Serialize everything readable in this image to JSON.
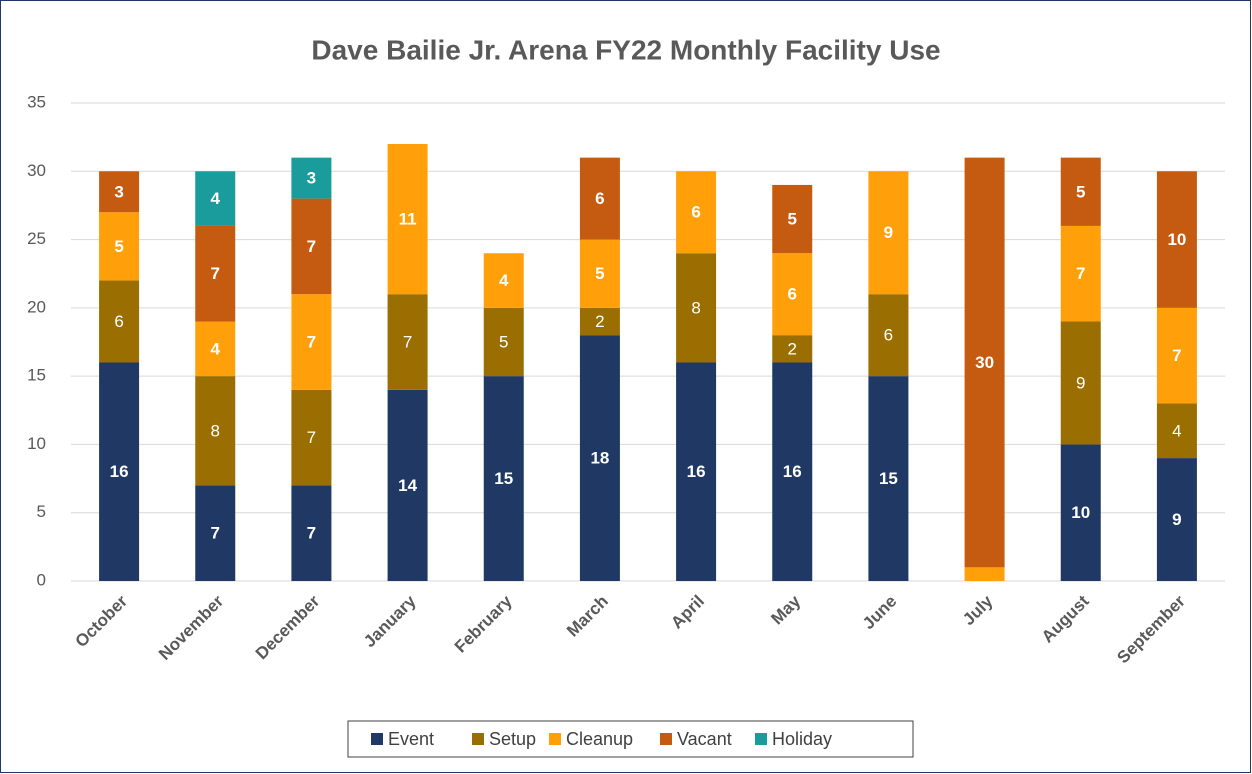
{
  "chart_data": {
    "type": "stacked_bar",
    "title": "Dave Bailie Jr. Arena FY22 Monthly Facility Use",
    "categories": [
      "October",
      "November",
      "December",
      "January",
      "February",
      "March",
      "April",
      "May",
      "June",
      "July",
      "August",
      "September"
    ],
    "series": [
      {
        "name": "Event",
        "color": "#203864",
        "values": [
          16,
          7,
          7,
          14,
          15,
          18,
          16,
          16,
          15,
          null,
          10,
          9
        ]
      },
      {
        "name": "Setup",
        "color": "#9a6e00",
        "values": [
          6,
          8,
          7,
          7,
          5,
          2,
          8,
          2,
          6,
          null,
          9,
          4
        ]
      },
      {
        "name": "Cleanup",
        "color": "#ffa00a",
        "values": [
          5,
          4,
          7,
          11,
          4,
          5,
          6,
          6,
          9,
          1,
          7,
          7
        ]
      },
      {
        "name": "Vacant",
        "color": "#c55a11",
        "values": [
          3,
          7,
          7,
          null,
          null,
          6,
          null,
          5,
          null,
          30,
          5,
          10
        ]
      },
      {
        "name": "Holiday",
        "color": "#1a9c9c",
        "values": [
          null,
          4,
          3,
          null,
          null,
          null,
          null,
          null,
          null,
          null,
          null,
          null
        ]
      }
    ],
    "ylim": [
      0,
      35
    ],
    "yticks": [
      0,
      5,
      10,
      15,
      20,
      25,
      30,
      35
    ],
    "grid": true,
    "legend": "bottom"
  }
}
